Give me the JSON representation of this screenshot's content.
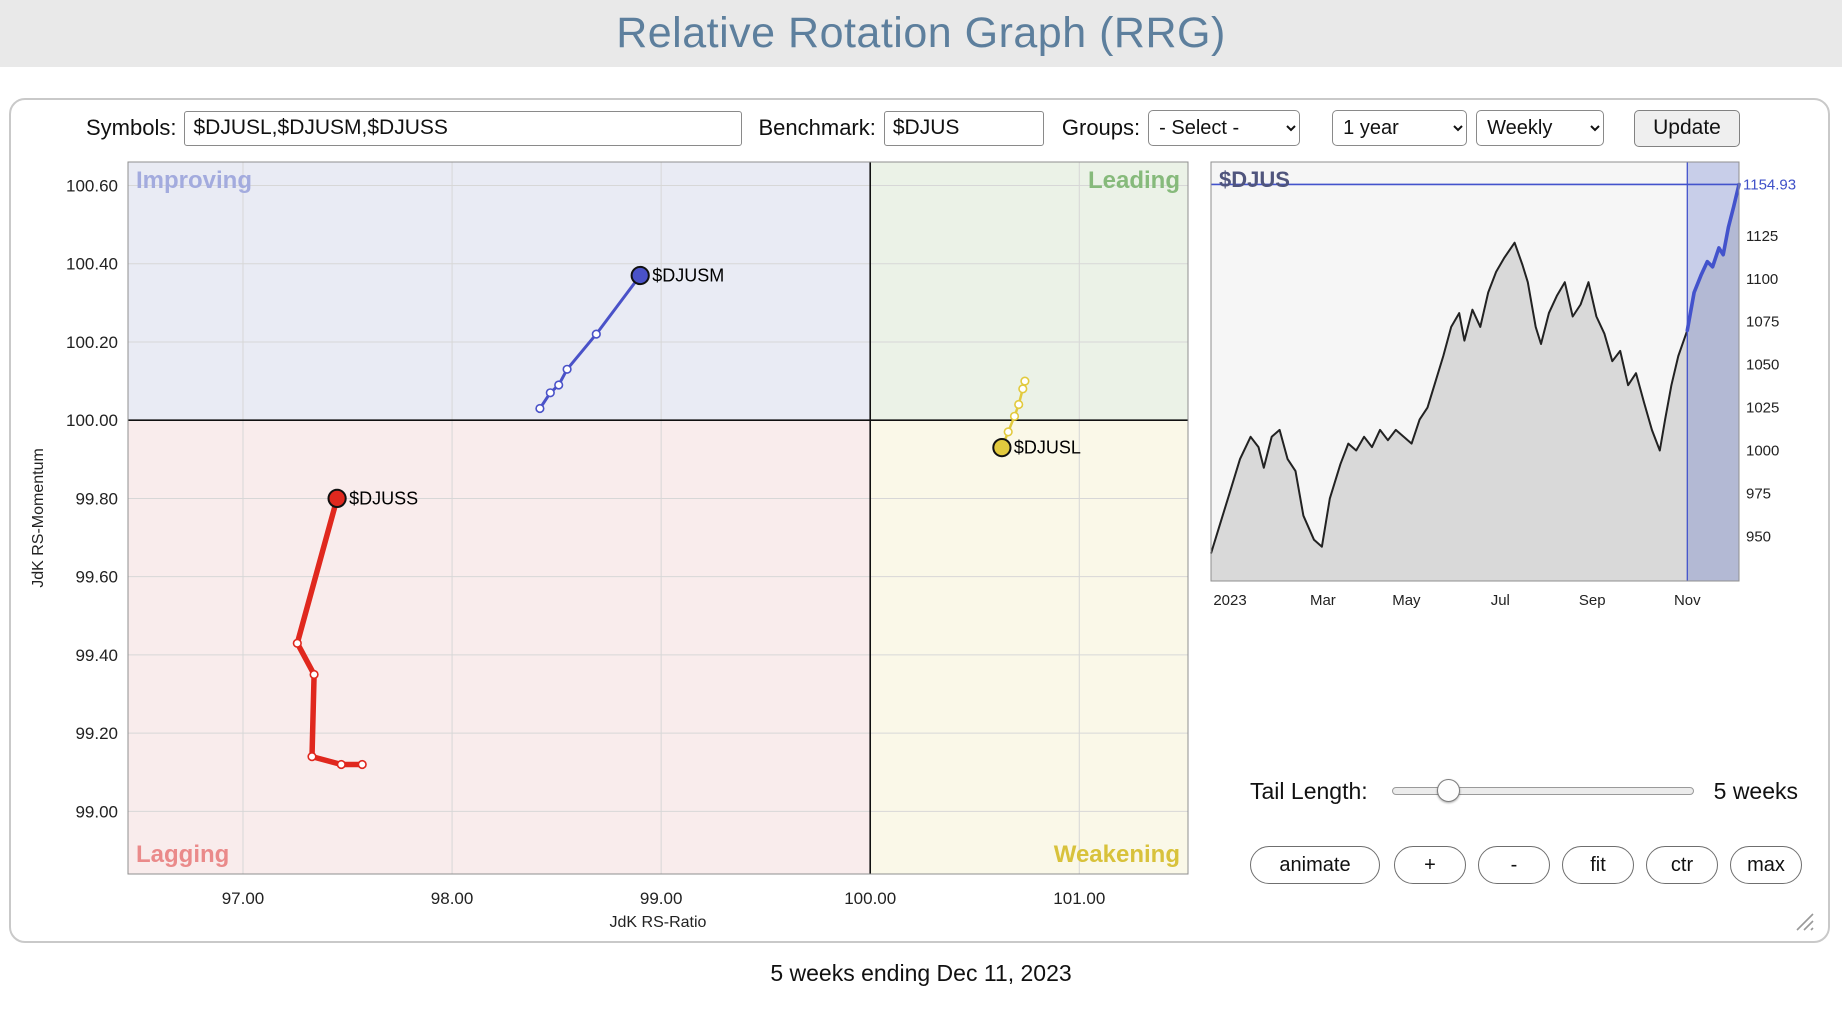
{
  "header": {
    "title": "Relative Rotation Graph (RRG)"
  },
  "toolbar": {
    "symbols_label": "Symbols:",
    "symbols_value": "$DJUSL,$DJUSM,$DJUSS",
    "benchmark_label": "Benchmark:",
    "benchmark_value": "$DJUS",
    "groups_label": "Groups:",
    "groups_value": "- Select -",
    "period_value": "1 year",
    "frequency_value": "Weekly",
    "update_label": "Update"
  },
  "chart_data": {
    "rrg": {
      "type": "scatter",
      "x_label": "JdK RS-Ratio",
      "y_label": "JdK RS-Momentum",
      "x_domain": [
        96.45,
        101.52
      ],
      "y_domain": [
        98.84,
        100.66
      ],
      "x_ticks": [
        97.0,
        98.0,
        99.0,
        100.0,
        101.0
      ],
      "y_ticks": [
        99.0,
        99.2,
        99.4,
        99.6,
        99.8,
        100.0,
        100.2,
        100.4,
        100.6
      ],
      "center": [
        100.0,
        100.0
      ],
      "quadrants": {
        "improving": {
          "label": "Improving",
          "color": "#a3abde",
          "bg": "#e9ebf4"
        },
        "leading": {
          "label": "Leading",
          "color": "#86ba7b",
          "bg": "#ebf2e7"
        },
        "lagging": {
          "label": "Lagging",
          "color": "#ea8a8a",
          "bg": "#f9ecec"
        },
        "weakening": {
          "label": "Weakening",
          "color": "#d8c23b",
          "bg": "#faf8e8"
        }
      },
      "series": [
        {
          "name": "$DJUSM",
          "color": "#4a52c8",
          "width": 3,
          "points": [
            [
              98.42,
              100.03
            ],
            [
              98.47,
              100.07
            ],
            [
              98.51,
              100.09
            ],
            [
              98.55,
              100.13
            ],
            [
              98.69,
              100.22
            ],
            [
              98.9,
              100.37
            ]
          ]
        },
        {
          "name": "$DJUSS",
          "color": "#e0281e",
          "width": 5.5,
          "points": [
            [
              97.57,
              99.12
            ],
            [
              97.47,
              99.12
            ],
            [
              97.33,
              99.14
            ],
            [
              97.34,
              99.35
            ],
            [
              97.26,
              99.43
            ],
            [
              97.45,
              99.8
            ]
          ]
        },
        {
          "name": "$DJUSL",
          "color": "#e2ca3e",
          "width": 2.5,
          "points": [
            [
              100.74,
              100.1
            ],
            [
              100.73,
              100.08
            ],
            [
              100.71,
              100.04
            ],
            [
              100.69,
              100.01
            ],
            [
              100.66,
              99.97
            ],
            [
              100.63,
              99.93
            ]
          ]
        }
      ]
    },
    "price": {
      "type": "area",
      "title": "$DJUS",
      "last_price": "1154.93",
      "y_ticks": [
        1125,
        1100,
        1075,
        1050,
        1025,
        1000,
        975,
        950
      ],
      "y_domain": [
        924,
        1168
      ],
      "x_labels": [
        {
          "label": "2023",
          "f": 0.036
        },
        {
          "label": "Mar",
          "f": 0.212
        },
        {
          "label": "May",
          "f": 0.37
        },
        {
          "label": "Jul",
          "f": 0.548
        },
        {
          "label": "Sep",
          "f": 0.722
        },
        {
          "label": "Nov",
          "f": 0.902
        }
      ],
      "highlight_from": 0.902,
      "colors": {
        "line": "#222222",
        "area": "#d9d9d9",
        "accent": "#4353cc",
        "highlight": "rgba(83,104,200,0.28)",
        "bg": "#f6f6f6"
      },
      "series": [
        [
          0.0,
          940
        ],
        [
          0.015,
          955
        ],
        [
          0.035,
          975
        ],
        [
          0.055,
          995
        ],
        [
          0.075,
          1008
        ],
        [
          0.09,
          1002
        ],
        [
          0.1,
          990
        ],
        [
          0.115,
          1008
        ],
        [
          0.13,
          1012
        ],
        [
          0.145,
          995
        ],
        [
          0.16,
          988
        ],
        [
          0.175,
          962
        ],
        [
          0.195,
          948
        ],
        [
          0.21,
          944
        ],
        [
          0.225,
          972
        ],
        [
          0.245,
          992
        ],
        [
          0.26,
          1004
        ],
        [
          0.275,
          1000
        ],
        [
          0.29,
          1008
        ],
        [
          0.305,
          1002
        ],
        [
          0.32,
          1012
        ],
        [
          0.335,
          1006
        ],
        [
          0.35,
          1012
        ],
        [
          0.365,
          1008
        ],
        [
          0.38,
          1004
        ],
        [
          0.395,
          1018
        ],
        [
          0.41,
          1025
        ],
        [
          0.425,
          1040
        ],
        [
          0.44,
          1055
        ],
        [
          0.455,
          1072
        ],
        [
          0.47,
          1080
        ],
        [
          0.48,
          1064
        ],
        [
          0.495,
          1082
        ],
        [
          0.51,
          1072
        ],
        [
          0.525,
          1092
        ],
        [
          0.54,
          1104
        ],
        [
          0.555,
          1112
        ],
        [
          0.575,
          1121
        ],
        [
          0.59,
          1108
        ],
        [
          0.6,
          1098
        ],
        [
          0.615,
          1072
        ],
        [
          0.625,
          1062
        ],
        [
          0.64,
          1080
        ],
        [
          0.655,
          1090
        ],
        [
          0.67,
          1098
        ],
        [
          0.685,
          1078
        ],
        [
          0.7,
          1085
        ],
        [
          0.715,
          1098
        ],
        [
          0.73,
          1078
        ],
        [
          0.745,
          1068
        ],
        [
          0.76,
          1052
        ],
        [
          0.775,
          1058
        ],
        [
          0.79,
          1038
        ],
        [
          0.805,
          1045
        ],
        [
          0.82,
          1028
        ],
        [
          0.835,
          1012
        ],
        [
          0.85,
          1000
        ],
        [
          0.86,
          1018
        ],
        [
          0.872,
          1038
        ],
        [
          0.885,
          1055
        ],
        [
          0.902,
          1070
        ],
        [
          0.915,
          1092
        ],
        [
          0.928,
          1102
        ],
        [
          0.94,
          1110
        ],
        [
          0.95,
          1107
        ],
        [
          0.962,
          1118
        ],
        [
          0.97,
          1114
        ],
        [
          0.98,
          1130
        ],
        [
          0.99,
          1142
        ],
        [
          1.0,
          1154.93
        ]
      ]
    }
  },
  "controls": {
    "tail_length_label": "Tail Length:",
    "tail_length_value": "5 weeks",
    "slider": {
      "value": 5
    },
    "buttons": [
      "animate",
      "+",
      "-",
      "fit",
      "ctr",
      "max"
    ]
  },
  "footer": {
    "caption": "5 weeks ending Dec 11, 2023"
  }
}
